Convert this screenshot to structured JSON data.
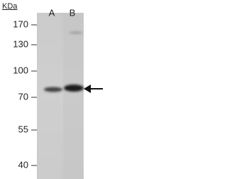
{
  "blot": {
    "unit_label": "KDa",
    "lanes": [
      "A",
      "B"
    ],
    "markers": [
      "170",
      "130",
      "100",
      "70",
      "55",
      "40"
    ]
  }
}
